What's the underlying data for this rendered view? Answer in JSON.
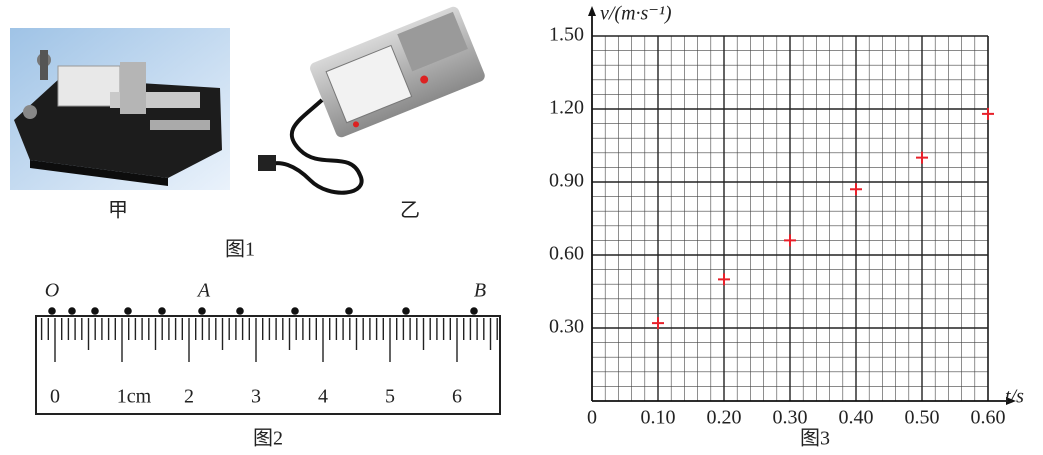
{
  "figure1": {
    "labels": [
      "甲",
      "乙"
    ],
    "caption": "图1"
  },
  "figure2": {
    "points": [
      "O",
      "A",
      "B"
    ],
    "tick_labels": [
      "0",
      "1cm",
      "2",
      "3",
      "4",
      "5",
      "6"
    ],
    "caption": "图2"
  },
  "chart_data": {
    "type": "scatter",
    "x_label": "t/s",
    "y_label": "v/(m·s⁻¹)",
    "caption": "图3",
    "x": [
      0.1,
      0.2,
      0.3,
      0.4,
      0.5,
      0.6
    ],
    "values": [
      0.32,
      0.5,
      0.66,
      0.87,
      1.0,
      1.18
    ],
    "color": "#e8202a",
    "xlim": [
      0,
      0.6
    ],
    "ylim": [
      0,
      1.5
    ],
    "xticks": [
      0,
      {
        "value": 0.1,
        "label": "0.10"
      },
      {
        "value": 0.2,
        "label": "0.20"
      },
      {
        "value": 0.3,
        "label": "0.30"
      },
      {
        "value": 0.4,
        "label": "0.40"
      },
      {
        "value": 0.5,
        "label": "0.50"
      },
      {
        "value": 0.6,
        "label": "0.60"
      }
    ],
    "yticks": [
      {
        "value": 0.3,
        "label": "0.30"
      },
      {
        "value": 0.6,
        "label": "0.60"
      },
      {
        "value": 0.9,
        "label": "0.90"
      },
      {
        "value": 1.2,
        "label": "1.20"
      },
      {
        "value": 1.5,
        "label": "1.50"
      }
    ],
    "grid": true
  }
}
